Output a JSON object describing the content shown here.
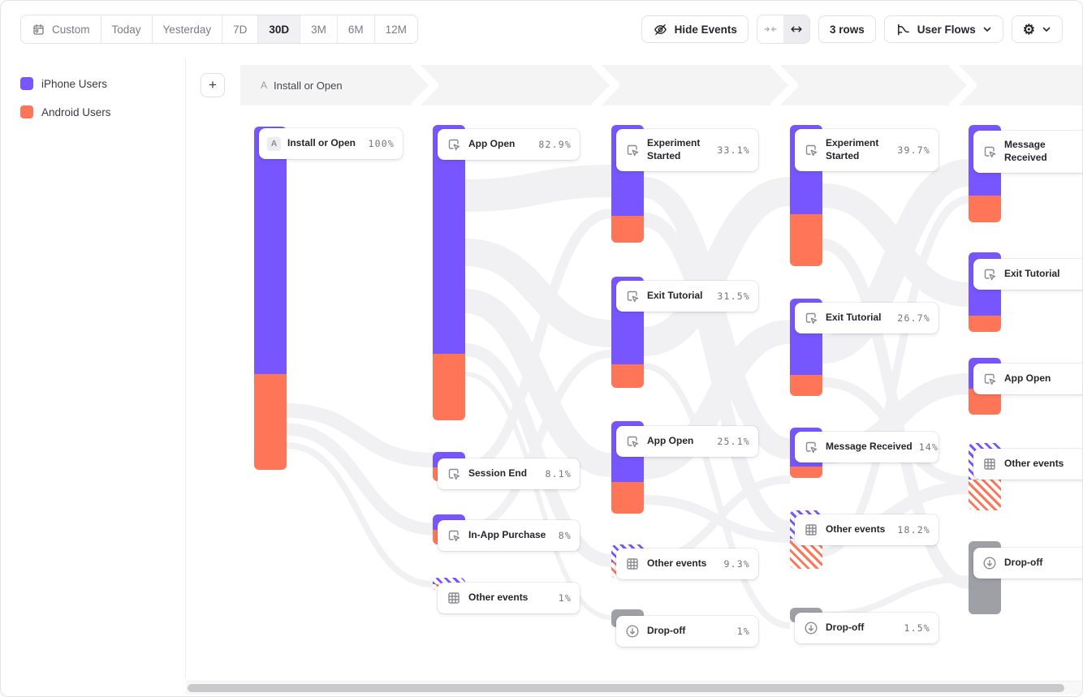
{
  "toolbar": {
    "date_ranges": [
      {
        "label": "Custom",
        "icon": "calendar-icon",
        "active": false
      },
      {
        "label": "Today",
        "active": false
      },
      {
        "label": "Yesterday",
        "active": false
      },
      {
        "label": "7D",
        "active": false
      },
      {
        "label": "30D",
        "active": true
      },
      {
        "label": "3M",
        "active": false
      },
      {
        "label": "6M",
        "active": false
      },
      {
        "label": "12M",
        "active": false
      }
    ],
    "hide_events_label": "Hide Events",
    "hide_events_icon": "eye-off-icon",
    "collapse_icon": "arrows-inward-icon",
    "expand_icon": "arrows-outward-icon",
    "rows_label": "3 rows",
    "view_label": "User Flows",
    "view_icon": "flows-chart-icon",
    "settings_icon": "gear-icon",
    "add_step_label": "+"
  },
  "legend": {
    "items": [
      {
        "label": "iPhone Users",
        "color": "#7856ff"
      },
      {
        "label": "Android Users",
        "color": "#ff7557"
      }
    ]
  },
  "breadcrumb": {
    "step_letter": "A",
    "step_label": "Install or Open"
  },
  "colors": {
    "iphone": "#7856ff",
    "android": "#ff7557",
    "dropoff": "#9f9fa6"
  },
  "flow": {
    "columns": [
      {
        "nodes": [
          {
            "name": "Install or Open",
            "pct": "100%",
            "type": "event",
            "badge": "A"
          }
        ]
      },
      {
        "nodes": [
          {
            "name": "App Open",
            "pct": "82.9%",
            "type": "event"
          },
          {
            "name": "Session End",
            "pct": "8.1%",
            "type": "event"
          },
          {
            "name": "In-App Purchase",
            "pct": "8%",
            "type": "event"
          },
          {
            "name": "Other events",
            "pct": "1%",
            "type": "other"
          }
        ]
      },
      {
        "nodes": [
          {
            "name": "Experiment Started",
            "pct": "33.1%",
            "type": "event"
          },
          {
            "name": "Exit Tutorial",
            "pct": "31.5%",
            "type": "event"
          },
          {
            "name": "App Open",
            "pct": "25.1%",
            "type": "event"
          },
          {
            "name": "Other events",
            "pct": "9.3%",
            "type": "other"
          },
          {
            "name": "Drop-off",
            "pct": "1%",
            "type": "dropoff"
          }
        ]
      },
      {
        "nodes": [
          {
            "name": "Experiment Started",
            "pct": "39.7%",
            "type": "event"
          },
          {
            "name": "Exit Tutorial",
            "pct": "26.7%",
            "type": "event"
          },
          {
            "name": "Message Received",
            "pct": "14%",
            "type": "event"
          },
          {
            "name": "Other events",
            "pct": "18.2%",
            "type": "other"
          },
          {
            "name": "Drop-off",
            "pct": "1.5%",
            "type": "dropoff"
          }
        ]
      },
      {
        "nodes": [
          {
            "name": "Message Received",
            "pct": "",
            "type": "event"
          },
          {
            "name": "Exit Tutorial",
            "pct": "",
            "type": "event"
          },
          {
            "name": "App Open",
            "pct": "",
            "type": "event"
          },
          {
            "name": "Other events",
            "pct": "",
            "type": "other"
          },
          {
            "name": "Drop-off",
            "pct": "",
            "type": "dropoff"
          }
        ]
      }
    ]
  }
}
